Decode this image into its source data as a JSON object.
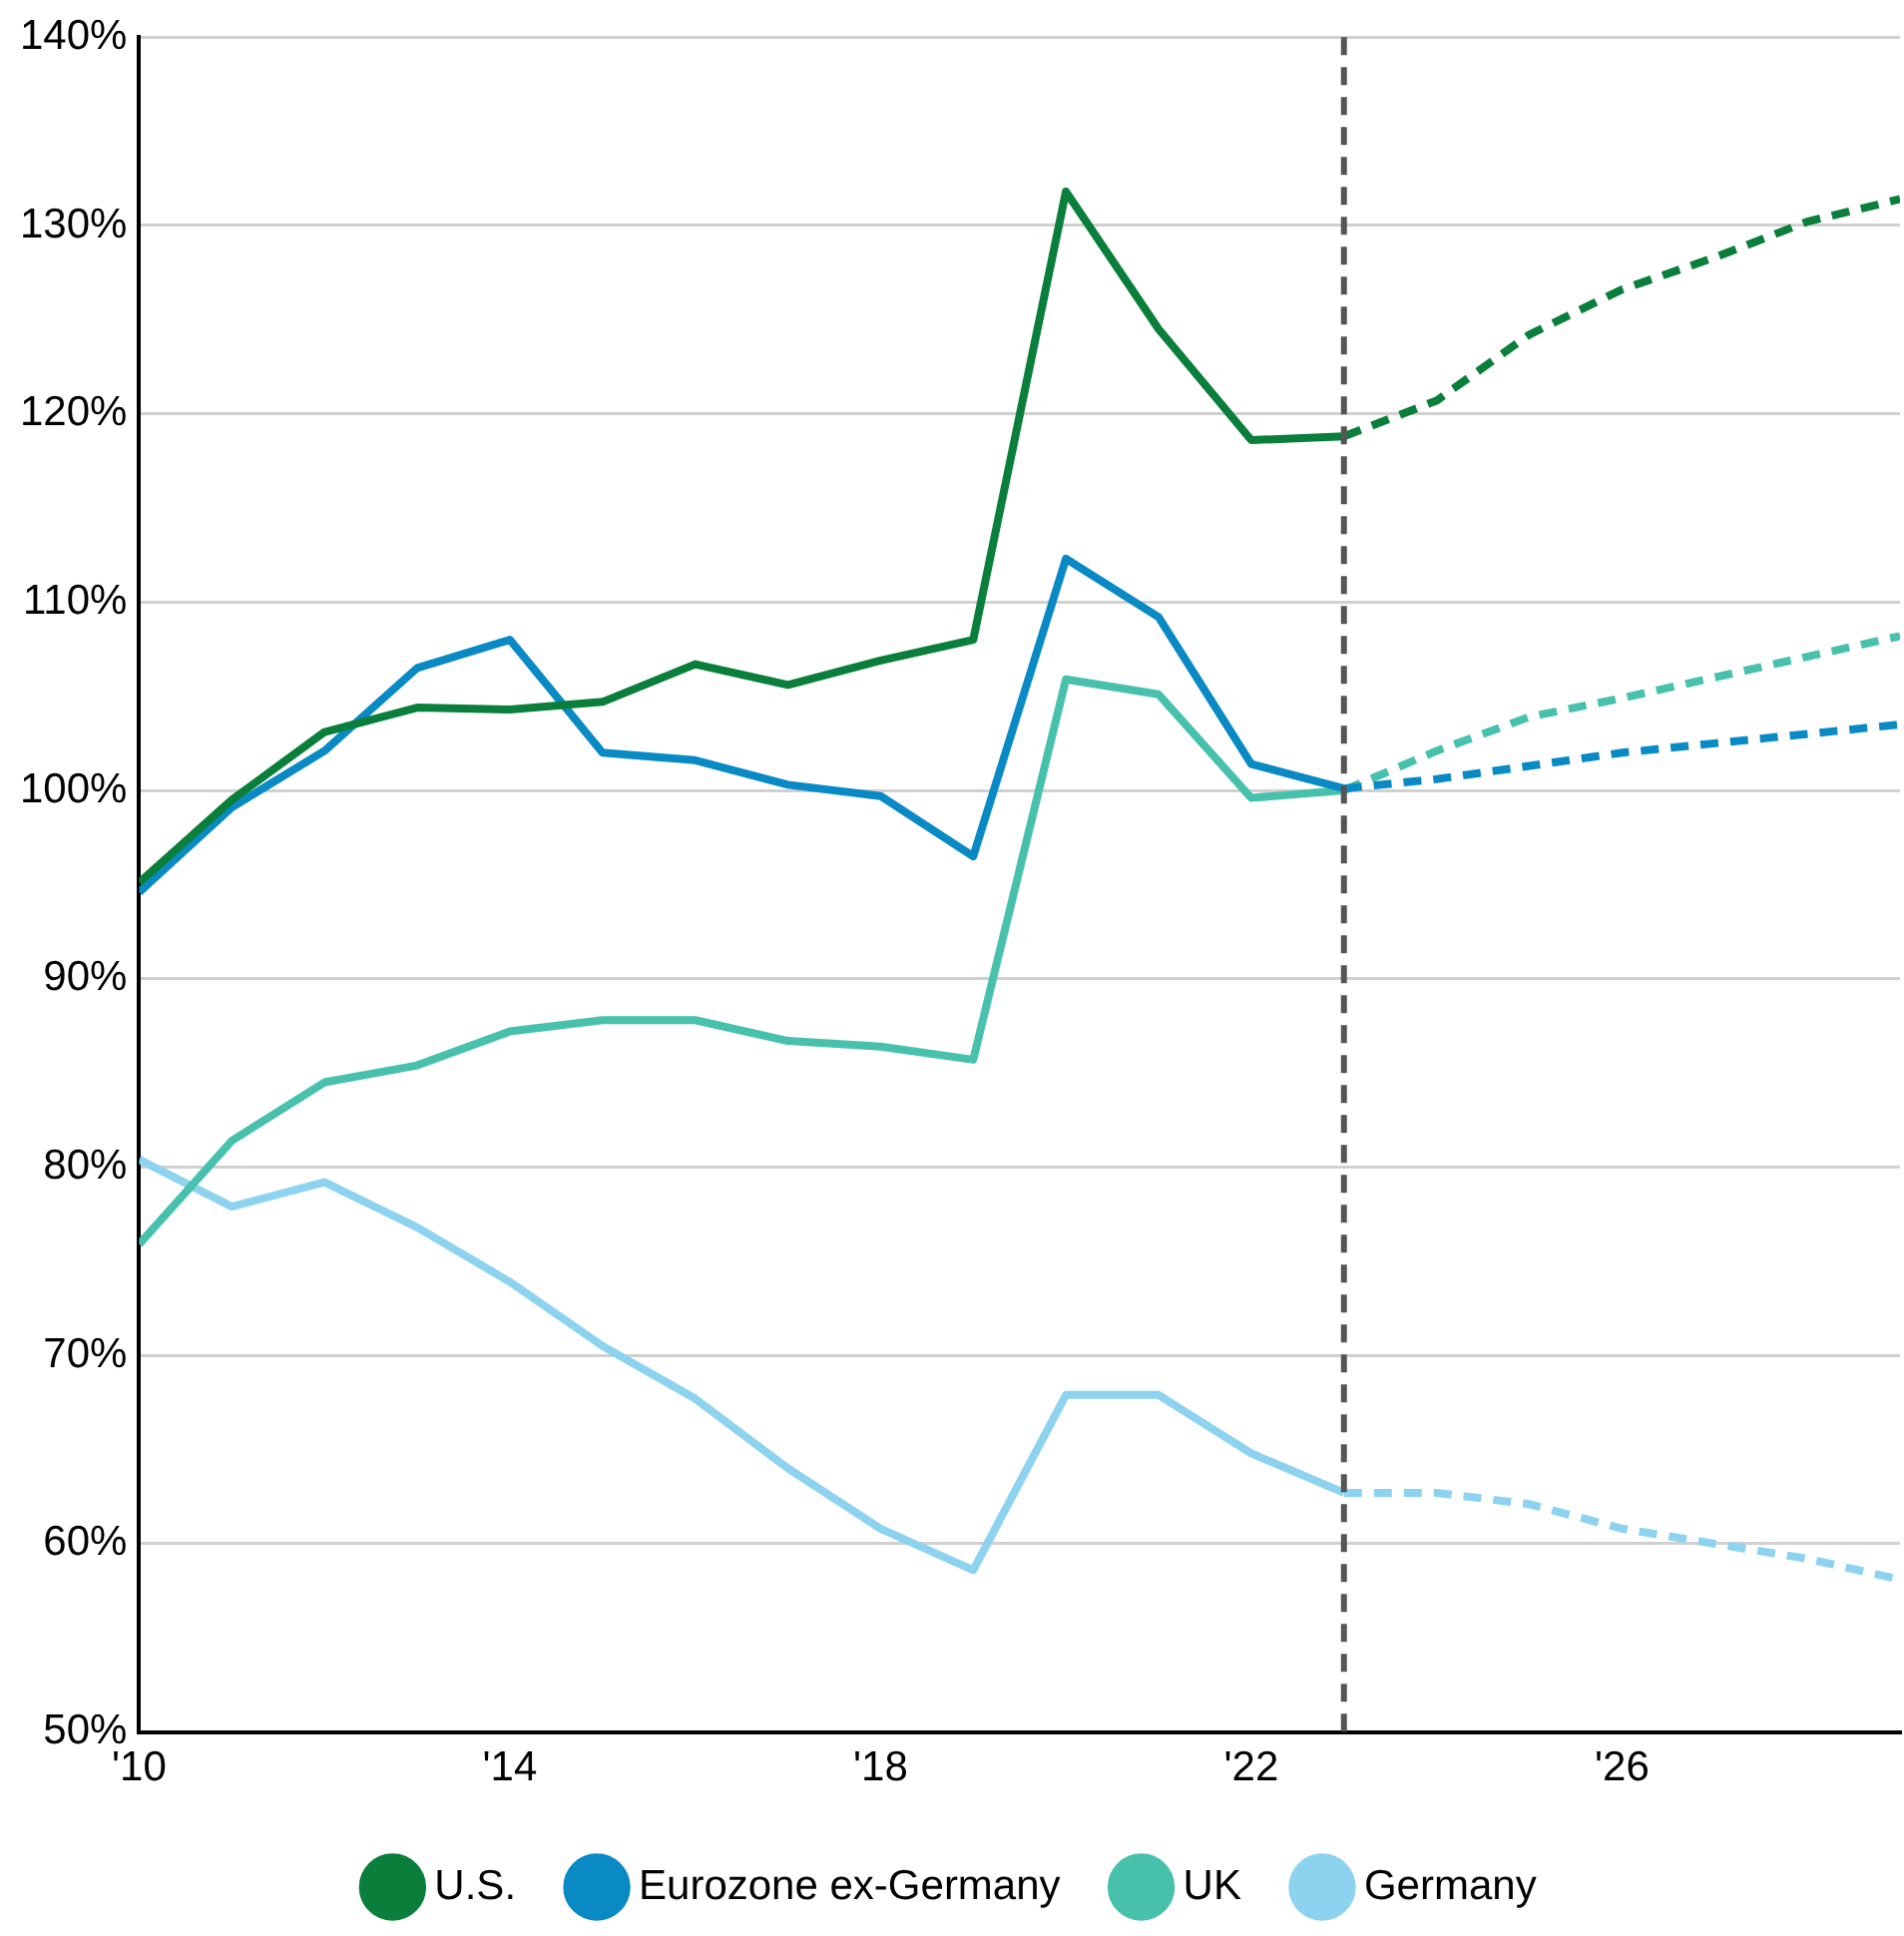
{
  "chart_data": {
    "type": "line",
    "xlim": [
      2010,
      2029
    ],
    "ylim": [
      50,
      140
    ],
    "xticks": [
      {
        "value": 2010,
        "label": "'10"
      },
      {
        "value": 2014,
        "label": "'14"
      },
      {
        "value": 2018,
        "label": "'18"
      },
      {
        "value": 2022,
        "label": "'22"
      },
      {
        "value": 2026,
        "label": "'26"
      }
    ],
    "yticks": [
      {
        "value": 50,
        "label": "50%"
      },
      {
        "value": 60,
        "label": "60%"
      },
      {
        "value": 70,
        "label": "70%"
      },
      {
        "value": 80,
        "label": "80%"
      },
      {
        "value": 90,
        "label": "90%"
      },
      {
        "value": 100,
        "label": "100%"
      },
      {
        "value": 110,
        "label": "110%"
      },
      {
        "value": 120,
        "label": "120%"
      },
      {
        "value": 130,
        "label": "130%"
      },
      {
        "value": 140,
        "label": "140%"
      }
    ],
    "grid": "y",
    "legend": "bottom",
    "marker": "none",
    "ref_lines": [
      {
        "axis": "x",
        "value": 2023,
        "label": null,
        "color": "#555555",
        "line_style": "dashed"
      }
    ],
    "series": [
      {
        "name": "U.S.",
        "color": "#0a7e3b",
        "line_style": "solid",
        "x": [
          2010,
          2011,
          2012,
          2013,
          2014,
          2015,
          2016,
          2017,
          2018,
          2019,
          2020,
          2021,
          2022,
          2023
        ],
        "values": [
          95.1,
          99.5,
          103.1,
          104.4,
          104.3,
          104.7,
          106.7,
          105.6,
          106.9,
          108.0,
          131.8,
          124.5,
          118.6,
          118.8
        ]
      },
      {
        "name": "Eurozone ex-Germany",
        "color": "#0a8ac4",
        "line_style": "solid",
        "x": [
          2010,
          2011,
          2012,
          2013,
          2014,
          2015,
          2016,
          2017,
          2018,
          2019,
          2020,
          2021,
          2022,
          2023
        ],
        "values": [
          94.6,
          99.1,
          102.1,
          106.5,
          108.0,
          102.0,
          101.6,
          100.3,
          99.7,
          96.5,
          112.3,
          109.2,
          101.4,
          100.1
        ]
      },
      {
        "name": "UK",
        "color": "#48c1ac",
        "line_style": "solid",
        "x": [
          2010,
          2011,
          2012,
          2013,
          2014,
          2015,
          2016,
          2017,
          2018,
          2019,
          2020,
          2021,
          2022,
          2023
        ],
        "values": [
          75.9,
          81.4,
          84.5,
          85.4,
          87.2,
          87.8,
          87.8,
          86.7,
          86.4,
          85.7,
          105.9,
          105.1,
          99.6,
          100.0
        ]
      },
      {
        "name": "Germany",
        "color": "#8dd3ef",
        "line_style": "solid",
        "x": [
          2010,
          2011,
          2012,
          2013,
          2014,
          2015,
          2016,
          2017,
          2018,
          2019,
          2020,
          2021,
          2022,
          2023
        ],
        "values": [
          80.4,
          77.9,
          79.2,
          76.8,
          73.9,
          70.5,
          67.7,
          64.0,
          60.8,
          58.6,
          67.9,
          67.9,
          64.8,
          62.7
        ]
      },
      {
        "color": "#0a7e3b",
        "line_style": "dashed",
        "x": [
          2023,
          2024,
          2025,
          2026,
          2027,
          2028,
          2029
        ],
        "values": [
          118.8,
          120.7,
          124.2,
          126.6,
          128.3,
          130.2,
          131.4
        ]
      },
      {
        "color": "#0a8ac4",
        "line_style": "dashed",
        "x": [
          2023,
          2024,
          2025,
          2026,
          2027,
          2028,
          2029
        ],
        "values": [
          100.1,
          100.6,
          101.3,
          102.0,
          102.5,
          103.0,
          103.5
        ]
      },
      {
        "color": "#48c1ac",
        "line_style": "dashed",
        "x": [
          2023,
          2024,
          2025,
          2026,
          2027,
          2028,
          2029
        ],
        "values": [
          100.0,
          102.1,
          103.9,
          104.9,
          106.0,
          107.1,
          108.2
        ]
      },
      {
        "color": "#8dd3ef",
        "line_style": "dashed",
        "x": [
          2023,
          2024,
          2025,
          2026,
          2027,
          2028,
          2029
        ],
        "values": [
          62.7,
          62.7,
          62.1,
          60.8,
          60.0,
          59.2,
          58.1
        ]
      }
    ]
  }
}
